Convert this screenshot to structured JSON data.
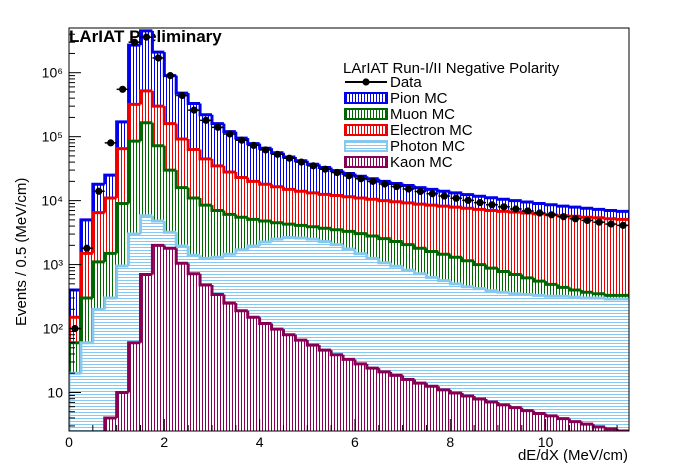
{
  "chart_data": {
    "type": "bar",
    "title": "LArIAT Preliminary",
    "xlabel": "dE/dX (MeV/cm)",
    "ylabel": "Events / 0.5 (MeV/cm)",
    "xlim": [
      0,
      11.75
    ],
    "ylim": [
      2.5,
      5000000
    ],
    "log_y": true,
    "grid": false,
    "legend_position": "top-right",
    "legend_title": "LArIAT Run-I/II Negative Polarity",
    "x_ticks": [
      0,
      2,
      4,
      6,
      8,
      10
    ],
    "x_tick_labels": [
      "0",
      "2",
      "4",
      "6",
      "8",
      "10"
    ],
    "y_ticks": [
      10,
      100,
      1000,
      10000,
      100000,
      1000000
    ],
    "y_tick_labels": [
      "10",
      "10²",
      "10³",
      "10⁴",
      "10⁵",
      "10⁶"
    ],
    "bin_width": 0.25,
    "x": [
      0.125,
      0.375,
      0.625,
      0.875,
      1.125,
      1.375,
      1.625,
      1.875,
      2.125,
      2.375,
      2.625,
      2.875,
      3.125,
      3.375,
      3.625,
      3.875,
      4.125,
      4.375,
      4.625,
      4.875,
      5.125,
      5.375,
      5.625,
      5.875,
      6.125,
      6.375,
      6.625,
      6.875,
      7.125,
      7.375,
      7.625,
      7.875,
      8.125,
      8.375,
      8.625,
      8.875,
      9.125,
      9.375,
      9.625,
      9.875,
      10.125,
      10.375,
      10.625,
      10.875,
      11.125,
      11.375,
      11.625
    ],
    "series": [
      {
        "name": "Pion MC",
        "kind": "hist",
        "color": "#0000ee",
        "values": [
          400,
          5000,
          18000,
          25000,
          170000,
          2700000,
          4500000,
          2100000,
          900000,
          480000,
          330000,
          220000,
          160000,
          120000,
          95000,
          78000,
          66000,
          56000,
          48000,
          42000,
          37000,
          33000,
          29500,
          26500,
          24000,
          22000,
          20000,
          18500,
          17200,
          16000,
          15000,
          14000,
          13200,
          12400,
          11700,
          11100,
          10500,
          10000,
          9500,
          9000,
          8600,
          8200,
          7900,
          7600,
          7300,
          7000,
          6800
        ]
      },
      {
        "name": "Electron MC",
        "kind": "hist",
        "color": "#ee0000",
        "values": [
          150,
          1500,
          6500,
          11000,
          65000,
          320000,
          520000,
          300000,
          160000,
          92000,
          63000,
          45000,
          35000,
          28000,
          23000,
          20000,
          18000,
          16500,
          15000,
          14000,
          13200,
          12500,
          12000,
          11500,
          11000,
          10500,
          10000,
          9600,
          9200,
          8800,
          8500,
          8200,
          7900,
          7600,
          7300,
          7000,
          6800,
          6600,
          6400,
          6200,
          6000,
          5800,
          5700,
          5500,
          5400,
          5200,
          5100
        ]
      },
      {
        "name": "Muon MC",
        "kind": "hist",
        "color": "#006600",
        "values": [
          60,
          300,
          1100,
          1500,
          9000,
          85000,
          165000,
          72000,
          30000,
          16000,
          11000,
          8500,
          7000,
          6100,
          5500,
          5100,
          4800,
          4500,
          4300,
          4100,
          3900,
          3700,
          3500,
          3300,
          3050,
          2800,
          2550,
          2300,
          2050,
          1800,
          1600,
          1450,
          1300,
          1150,
          1000,
          880,
          780,
          700,
          620,
          550,
          490,
          440,
          400,
          370,
          350,
          330,
          330
        ]
      },
      {
        "name": "Photon MC",
        "kind": "hist",
        "color": "#87c8f0",
        "values": [
          20,
          60,
          200,
          300,
          950,
          3000,
          5800,
          4800,
          3200,
          1950,
          1400,
          1250,
          1300,
          1450,
          1700,
          1950,
          2250,
          2500,
          2650,
          2600,
          2500,
          2280,
          2050,
          1750,
          1480,
          1250,
          1070,
          940,
          820,
          720,
          630,
          560,
          500,
          450,
          420,
          390,
          370,
          350,
          340,
          330,
          320,
          320,
          310,
          300,
          300,
          290,
          290
        ]
      },
      {
        "name": "Kaon MC",
        "kind": "hist",
        "color": "#880055",
        "values": [
          0,
          0,
          2,
          4,
          10,
          60,
          700,
          2000,
          1800,
          1050,
          720,
          480,
          340,
          250,
          190,
          150,
          120,
          98,
          80,
          66,
          55,
          46,
          39,
          33,
          28,
          24,
          21,
          18.5,
          16,
          14,
          12.5,
          11,
          9.8,
          8.8,
          7.9,
          7.1,
          6.4,
          5.8,
          5.2,
          4.7,
          4.3,
          3.9,
          3.5,
          3.2,
          2.9,
          2.7,
          2.5
        ]
      },
      {
        "name": "Data",
        "kind": "points",
        "color": "#000000",
        "values": [
          100,
          1800,
          14000,
          80000,
          550000,
          3000000,
          3600000,
          1700000,
          900000,
          440000,
          260000,
          180000,
          140000,
          110000,
          88000,
          73000,
          62000,
          53000,
          46000,
          40000,
          35000,
          31000,
          27500,
          24500,
          22000,
          20000,
          18200,
          16600,
          15200,
          13900,
          12800,
          11800,
          10900,
          10100,
          9300,
          8600,
          8000,
          7400,
          6900,
          6400,
          6000,
          5600,
          5200,
          4900,
          4600,
          4300,
          4100
        ]
      }
    ],
    "legend_entries": [
      "Data",
      "Pion MC",
      "Muon MC",
      "Electron MC",
      "Photon MC",
      "Kaon MC"
    ]
  }
}
